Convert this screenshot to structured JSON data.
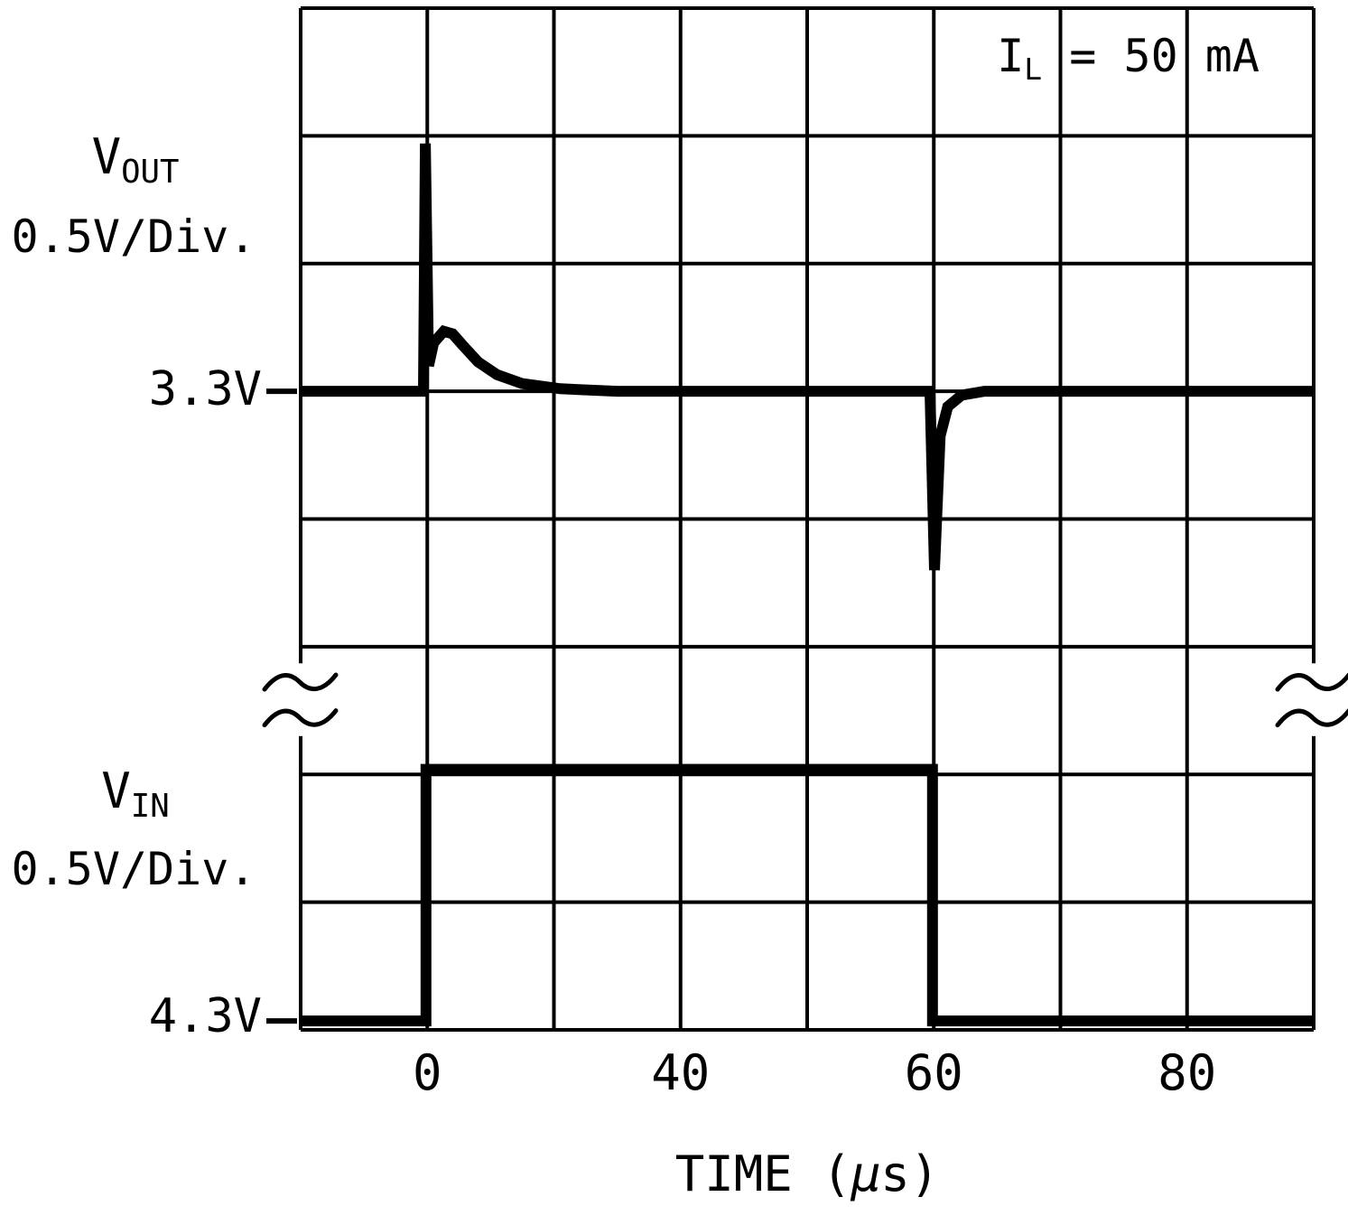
{
  "chart_data": {
    "type": "line",
    "title": "",
    "xlabel": "TIME (μs)",
    "xlabel_parts": {
      "pre": "TIME (",
      "mu": "μ",
      "post": "s)"
    },
    "annotation": {
      "main": "I",
      "sub": "L",
      "rest": " = 50 mA"
    },
    "grid": {
      "cols": 8,
      "rows": 8,
      "break_between_rows": [
        5,
        6
      ]
    },
    "x_ticks": [
      {
        "label": "0",
        "div": 1
      },
      {
        "label": "40",
        "div": 3
      },
      {
        "label": "60",
        "div": 5
      },
      {
        "label": "80",
        "div": 7
      }
    ],
    "traces": [
      {
        "id": "vout",
        "label_main": "V",
        "label_sub": "OUT",
        "scale": "0.5V/Div.",
        "baseline_label": "3.3V",
        "baseline_row": 3,
        "stroke_width": 12,
        "points_div": [
          [
            0,
            3
          ],
          [
            0.97,
            3
          ],
          [
            0.985,
            1.06
          ],
          [
            1.01,
            2.8
          ],
          [
            1.05,
            2.62
          ],
          [
            1.13,
            2.53
          ],
          [
            1.2,
            2.55
          ],
          [
            1.28,
            2.64
          ],
          [
            1.4,
            2.77
          ],
          [
            1.55,
            2.87
          ],
          [
            1.75,
            2.94
          ],
          [
            2.05,
            2.98
          ],
          [
            2.5,
            3
          ],
          [
            4.97,
            3
          ],
          [
            5.005,
            4.4
          ],
          [
            5.05,
            3.35
          ],
          [
            5.11,
            3.12
          ],
          [
            5.22,
            3.03
          ],
          [
            5.4,
            3
          ],
          [
            8,
            3
          ]
        ]
      },
      {
        "id": "vin",
        "label_main": "V",
        "label_sub": "IN",
        "scale": "0.5V/Div.",
        "baseline_label": "4.3V",
        "baseline_row": 7.93,
        "stroke_width": 12,
        "points_div": [
          [
            0,
            7.93
          ],
          [
            0.99,
            7.93
          ],
          [
            0.99,
            5.96
          ],
          [
            4.99,
            5.96
          ],
          [
            4.99,
            7.93
          ],
          [
            8,
            7.93
          ]
        ]
      }
    ],
    "colors": {
      "ink": "#000000",
      "background": "#ffffff"
    }
  }
}
